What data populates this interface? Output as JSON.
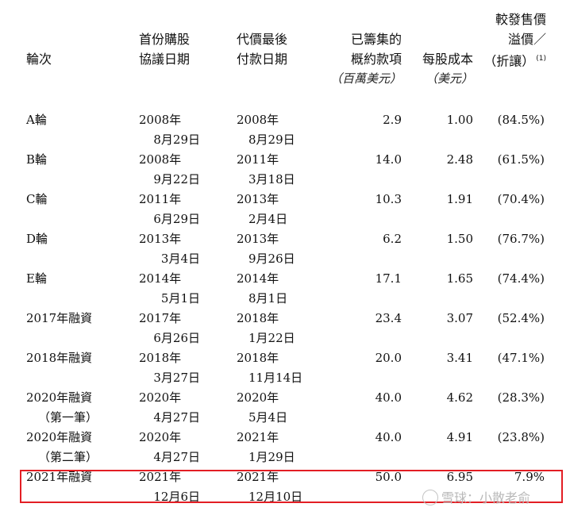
{
  "headers": {
    "round": "輪次",
    "first_agreement_date": [
      "首份購股",
      "協議日期"
    ],
    "final_payment_date": [
      "代價最後",
      "付款日期"
    ],
    "amount_raised": [
      "已籌集的",
      "概約款項"
    ],
    "amount_unit": "（百萬美元）",
    "cost_per_share": "每股成本",
    "cost_unit": "（美元）",
    "premium_discount": [
      "較發售價",
      "溢價／",
      "（折讓）"
    ],
    "footnote_mark": "(1)"
  },
  "rows": [
    {
      "round": [
        "A輪"
      ],
      "first": [
        "2008年",
        "8月29日"
      ],
      "last": [
        "2008年",
        "8月29日"
      ],
      "amount": "2.9",
      "cost": "1.00",
      "premium": "(84.5%)"
    },
    {
      "round": [
        "B輪"
      ],
      "first": [
        "2008年",
        "9月22日"
      ],
      "last": [
        "2011年",
        "3月18日"
      ],
      "amount": "14.0",
      "cost": "2.48",
      "premium": "(61.5%)"
    },
    {
      "round": [
        "C輪"
      ],
      "first": [
        "2011年",
        "6月29日"
      ],
      "last": [
        "2013年",
        "2月4日"
      ],
      "amount": "10.3",
      "cost": "1.91",
      "premium": "(70.4%)"
    },
    {
      "round": [
        "D輪"
      ],
      "first": [
        "2013年",
        "3月4日"
      ],
      "last": [
        "2013年",
        "9月26日"
      ],
      "amount": "6.2",
      "cost": "1.50",
      "premium": "(76.7%)"
    },
    {
      "round": [
        "E輪"
      ],
      "first": [
        "2014年",
        "5月1日"
      ],
      "last": [
        "2014年",
        "8月1日"
      ],
      "amount": "17.1",
      "cost": "1.65",
      "premium": "(74.4%)"
    },
    {
      "round": [
        "2017年融資"
      ],
      "first": [
        "2017年",
        "6月26日"
      ],
      "last": [
        "2018年",
        "1月22日"
      ],
      "amount": "23.4",
      "cost": "3.07",
      "premium": "(52.4%)"
    },
    {
      "round": [
        "2018年融資"
      ],
      "first": [
        "2018年",
        "3月27日"
      ],
      "last": [
        "2018年",
        "11月14日"
      ],
      "amount": "20.0",
      "cost": "3.41",
      "premium": "(47.1%)"
    },
    {
      "round": [
        "2020年融資",
        "（第一筆）"
      ],
      "first": [
        "2020年",
        "4月27日"
      ],
      "last": [
        "2020年",
        "5月4日"
      ],
      "amount": "40.0",
      "cost": "4.62",
      "premium": "(28.3%)"
    },
    {
      "round": [
        "2020年融資",
        "（第二筆）"
      ],
      "first": [
        "2020年",
        "4月27日"
      ],
      "last": [
        "2021年",
        "1月29日"
      ],
      "amount": "40.0",
      "cost": "4.91",
      "premium": "(23.8%)"
    },
    {
      "round": [
        "2021年融資"
      ],
      "first": [
        "2021年",
        "12月6日"
      ],
      "last": [
        "2021年",
        "12月10日"
      ],
      "amount": "50.0",
      "cost": "6.95",
      "premium": "7.9%"
    }
  ],
  "watermark": "雪球：小散老俞",
  "colors": {
    "highlight_border": "#e31e24",
    "text": "#111111",
    "watermark": "#b9b9b9"
  }
}
